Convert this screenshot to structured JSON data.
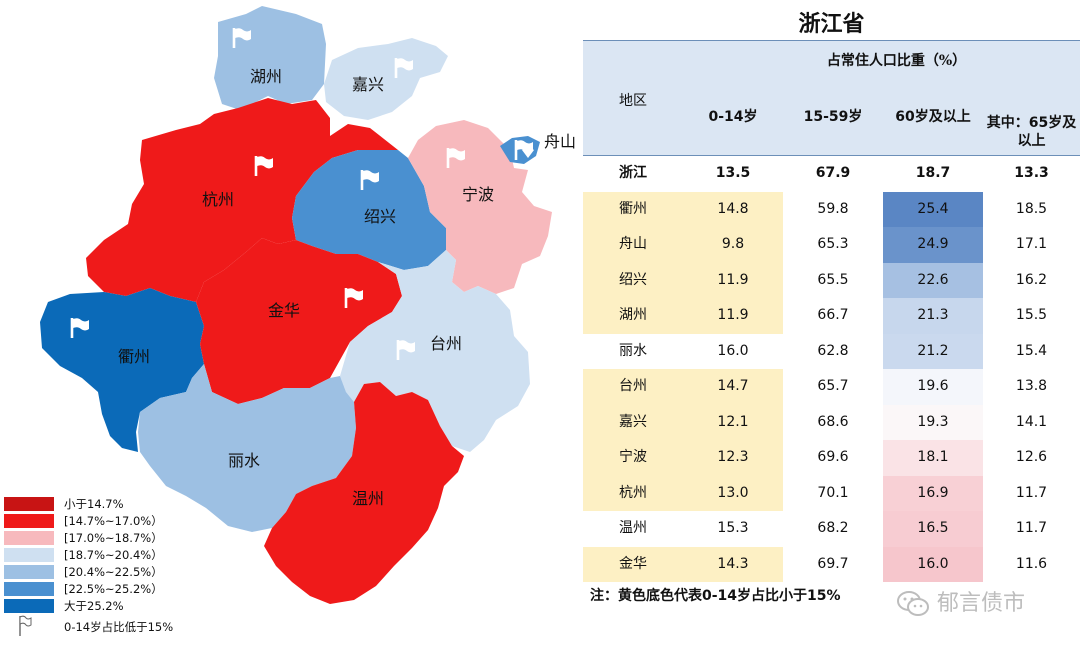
{
  "map": {
    "cities": [
      {
        "name": "湖州",
        "color": "#9dc0e3",
        "flag": true
      },
      {
        "name": "嘉兴",
        "color": "#cfe0f1",
        "flag": true
      },
      {
        "name": "舟山",
        "color": "#4a90d0",
        "flag": true
      },
      {
        "name": "杭州",
        "color": "#ef1a1a",
        "flag": true
      },
      {
        "name": "绍兴",
        "color": "#4a90d0",
        "flag": true
      },
      {
        "name": "宁波",
        "color": "#f7b9bd",
        "flag": true
      },
      {
        "name": "衢州",
        "color": "#0b6ab8",
        "flag": true
      },
      {
        "name": "金华",
        "color": "#ef1a1a",
        "flag": true
      },
      {
        "name": "台州",
        "color": "#cfe0f1",
        "flag": true
      },
      {
        "name": "丽水",
        "color": "#9dc0e3",
        "flag": false
      },
      {
        "name": "温州",
        "color": "#ef1a1a",
        "flag": false
      }
    ],
    "legend": [
      {
        "label": "小于14.7%",
        "color": "#c81414"
      },
      {
        "label": "[14.7%~17.0%）",
        "color": "#ef1a1a"
      },
      {
        "label": "[17.0%~18.7%）",
        "color": "#f7b9bd"
      },
      {
        "label": "[18.7%~20.4%）",
        "color": "#cfe0f1"
      },
      {
        "label": "[20.4%~22.5%）",
        "color": "#9dc0e3"
      },
      {
        "label": "[22.5%~25.2%）",
        "color": "#4a90d0"
      },
      {
        "label": "大于25.2%",
        "color": "#0b6ab8"
      }
    ],
    "flag_legend": "0-14岁占比低于15%"
  },
  "table": {
    "title": "浙江省",
    "header_group": "占常住人口比重（%）",
    "columns": [
      "地区",
      "0-14岁",
      "15-59岁",
      "60岁及以上",
      "其中：65岁及以上"
    ],
    "rows": [
      {
        "region": "浙江",
        "a": "13.5",
        "b": "67.9",
        "c": "18.7",
        "d": "13.3",
        "yellow": false,
        "bold": true,
        "c_color": "#ffffff"
      },
      {
        "region": "衢州",
        "a": "14.8",
        "b": "59.8",
        "c": "25.4",
        "d": "18.5",
        "yellow": true,
        "bold": false,
        "c_color": "#5a86c4"
      },
      {
        "region": "舟山",
        "a": "9.8",
        "b": "65.3",
        "c": "24.9",
        "d": "17.1",
        "yellow": true,
        "bold": false,
        "c_color": "#6a93cb"
      },
      {
        "region": "绍兴",
        "a": "11.9",
        "b": "65.5",
        "c": "22.6",
        "d": "16.2",
        "yellow": true,
        "bold": false,
        "c_color": "#a6c0e2"
      },
      {
        "region": "湖州",
        "a": "11.9",
        "b": "66.7",
        "c": "21.3",
        "d": "15.5",
        "yellow": true,
        "bold": false,
        "c_color": "#c7d7ed"
      },
      {
        "region": "丽水",
        "a": "16.0",
        "b": "62.8",
        "c": "21.2",
        "d": "15.4",
        "yellow": false,
        "bold": false,
        "c_color": "#cad9ee"
      },
      {
        "region": "台州",
        "a": "14.7",
        "b": "65.7",
        "c": "19.6",
        "d": "13.8",
        "yellow": true,
        "bold": false,
        "c_color": "#f4f6fb"
      },
      {
        "region": "嘉兴",
        "a": "12.1",
        "b": "68.6",
        "c": "19.3",
        "d": "14.1",
        "yellow": true,
        "bold": false,
        "c_color": "#fbf7f8"
      },
      {
        "region": "宁波",
        "a": "12.3",
        "b": "69.6",
        "c": "18.1",
        "d": "12.6",
        "yellow": true,
        "bold": false,
        "c_color": "#fae3e6"
      },
      {
        "region": "杭州",
        "a": "13.0",
        "b": "70.1",
        "c": "16.9",
        "d": "11.7",
        "yellow": true,
        "bold": false,
        "c_color": "#f8d0d5"
      },
      {
        "region": "温州",
        "a": "15.3",
        "b": "68.2",
        "c": "16.5",
        "d": "11.7",
        "yellow": false,
        "bold": false,
        "c_color": "#f7ccd2"
      },
      {
        "region": "金华",
        "a": "14.3",
        "b": "69.7",
        "c": "16.0",
        "d": "11.6",
        "yellow": true,
        "bold": false,
        "c_color": "#f6c6cc"
      }
    ],
    "note": "注：黄色底色代表0-14岁占比小于15%"
  },
  "watermark": {
    "text": "郁言债市",
    "icon": "wechat-icon"
  }
}
